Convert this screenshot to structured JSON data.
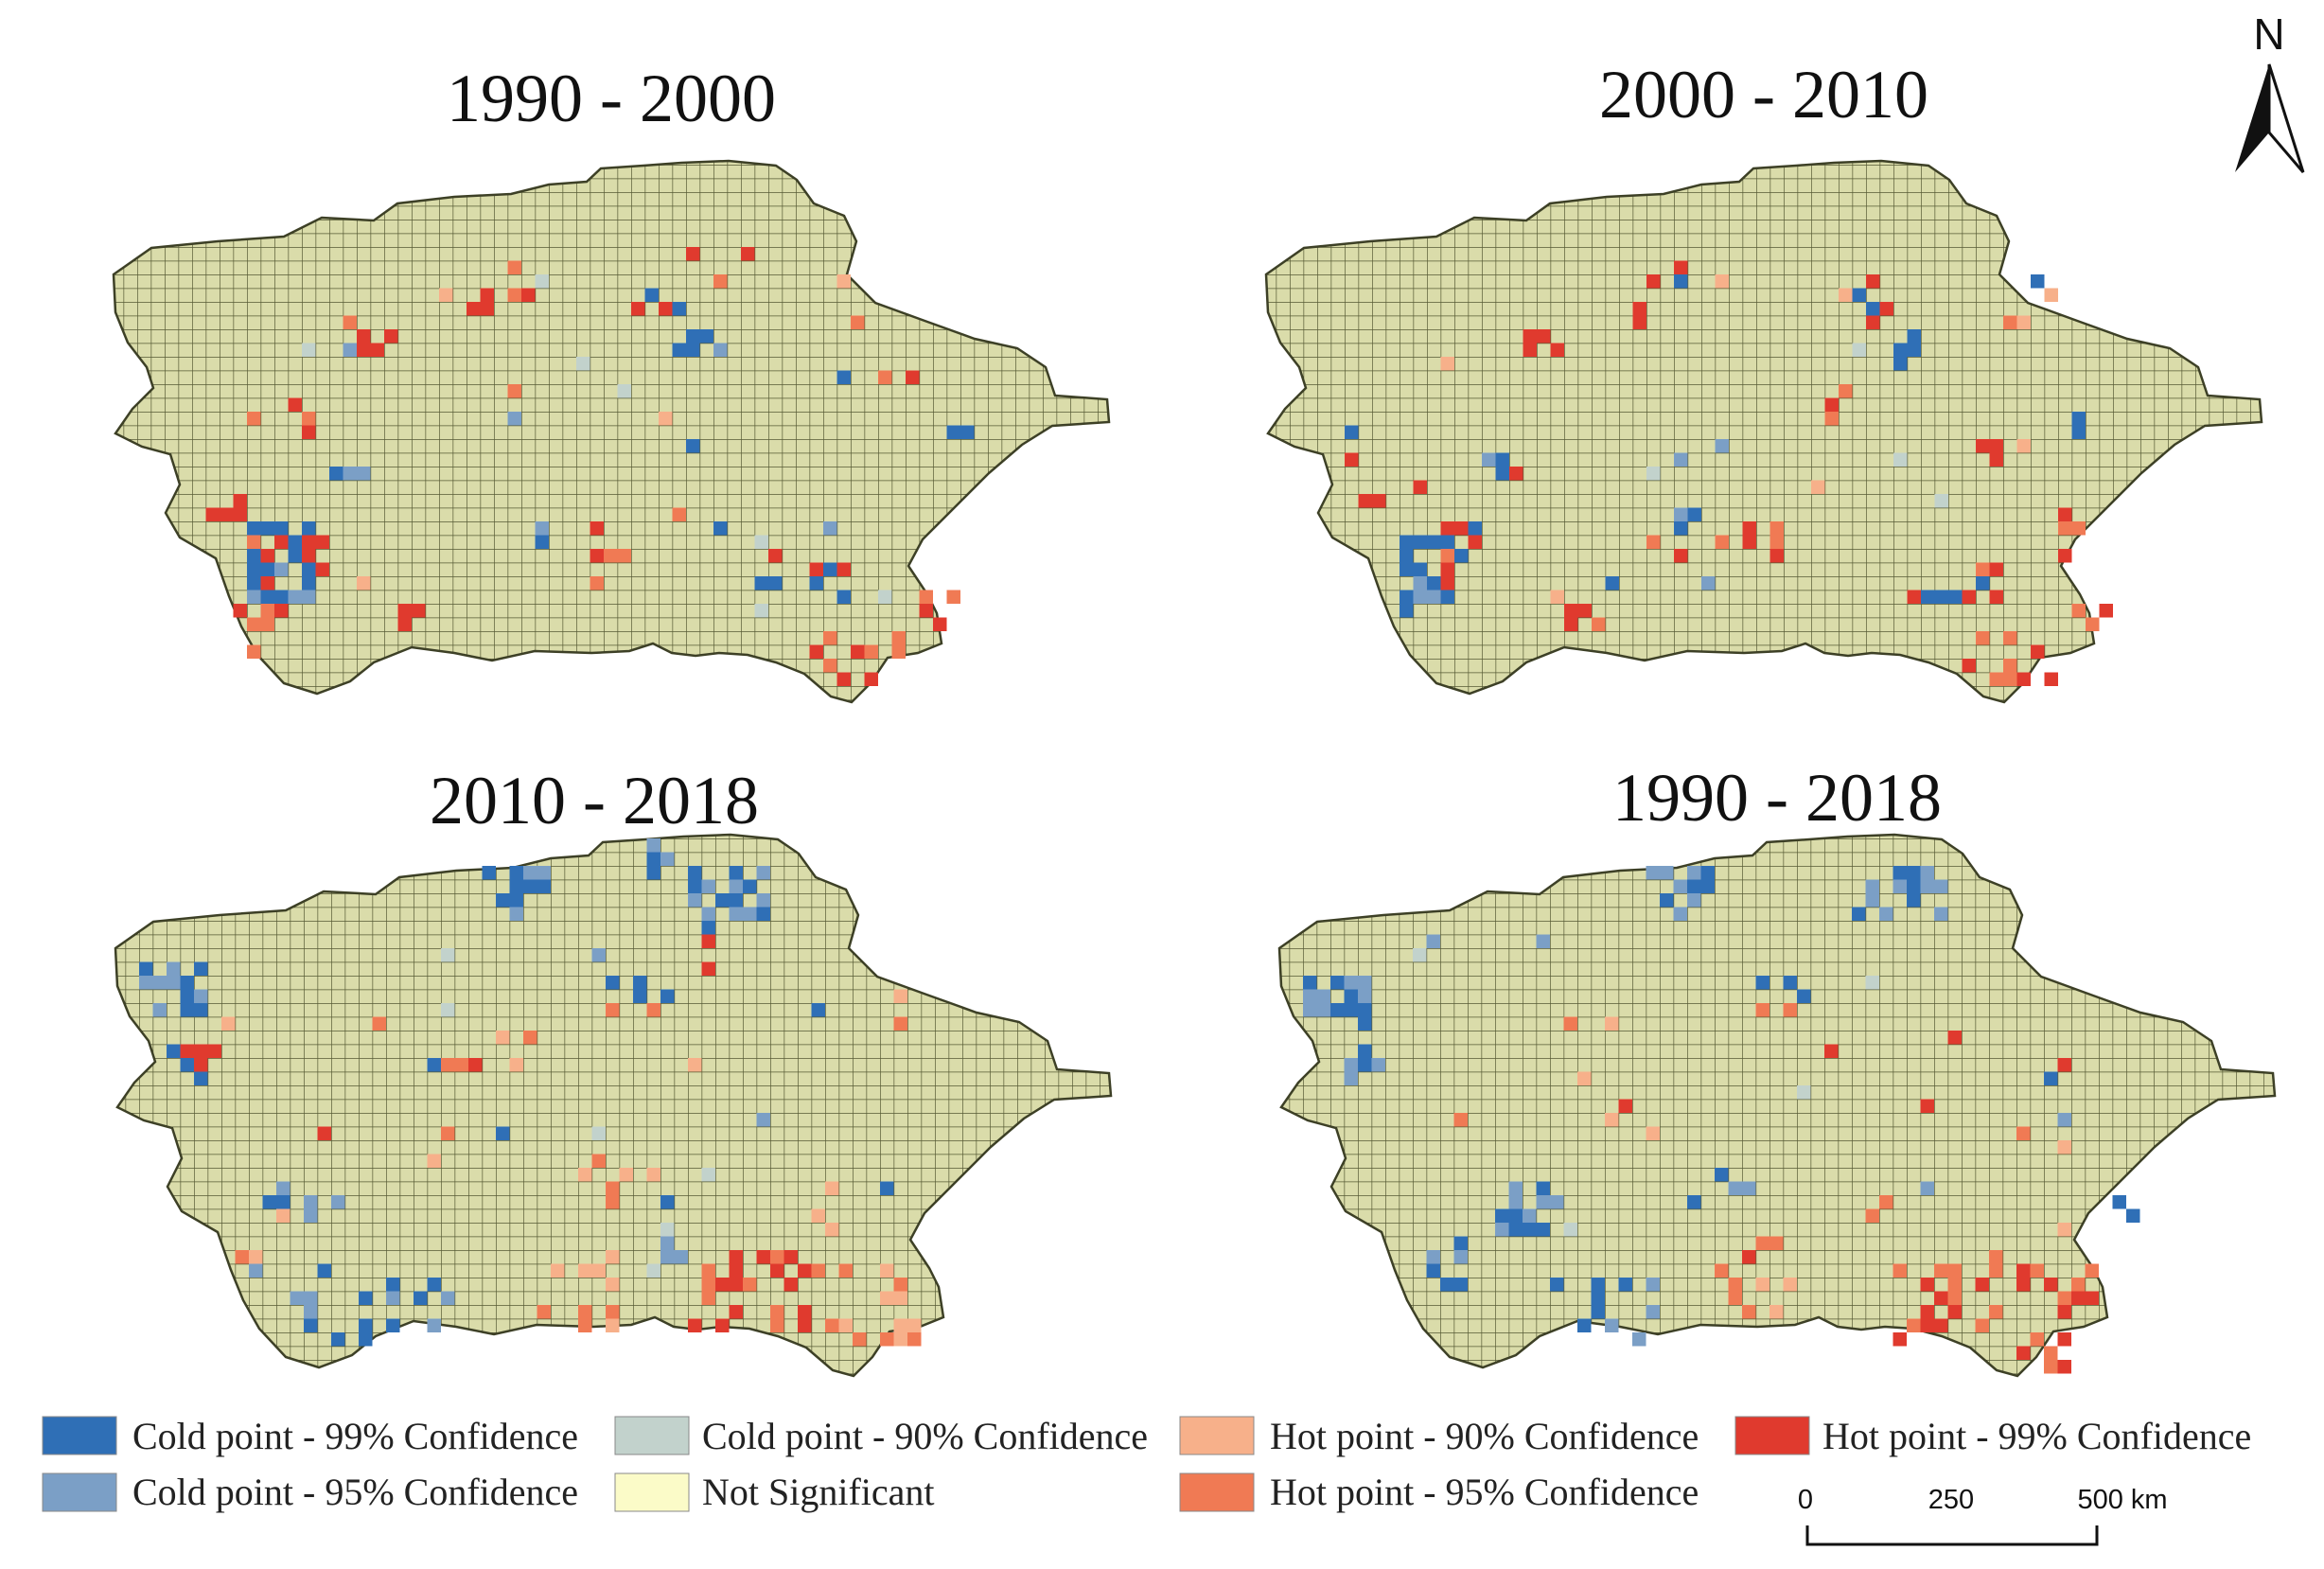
{
  "panels": [
    {
      "title": "1990 - 2000"
    },
    {
      "title": "2000 - 2010"
    },
    {
      "title": "2010 - 2018"
    },
    {
      "title": "1990 - 2018"
    }
  ],
  "legend": {
    "items": [
      {
        "label": "Cold point - 99%  Confidence",
        "color": "#2f6fb6"
      },
      {
        "label": "Cold point - 95%  Confidence",
        "color": "#7b9fc6"
      },
      {
        "label": "Cold point - 90%  Confidence",
        "color": "#c2d2cc"
      },
      {
        "label": "Not Significant",
        "color": "#fbfbc8"
      },
      {
        "label": "Hot point - 90%  Confidence",
        "color": "#f7b08a"
      },
      {
        "label": "Hot point - 95%  Confidence",
        "color": "#f07a54"
      },
      {
        "label": "Hot point - 99%  Confidence",
        "color": "#e03a2e"
      }
    ]
  },
  "scale_bar": {
    "labels": [
      "0",
      "250",
      "500 km"
    ]
  },
  "north_arrow": {
    "label": "N"
  },
  "colors": {
    "map_fill": "#dadcaa",
    "grid_line": "#565a34",
    "outline": "#3d4026"
  }
}
